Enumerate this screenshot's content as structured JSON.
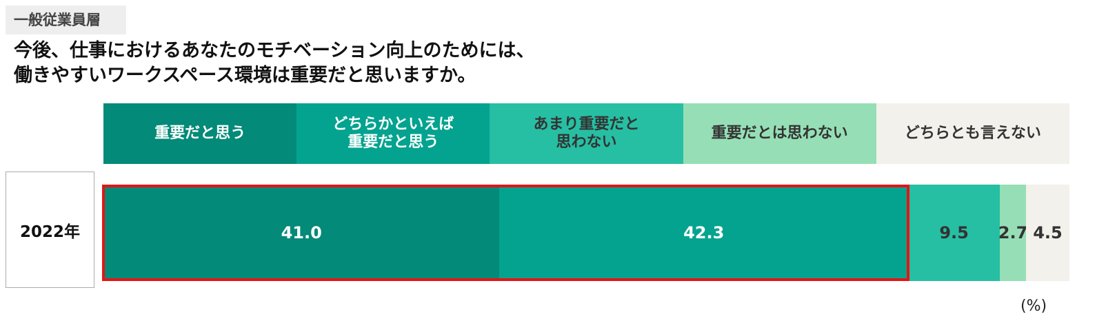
{
  "chart_data": {
    "type": "stacked-bar",
    "tag": "一般従業員層",
    "title": "今後、仕事におけるあなたのモチベーション向上のためには、\n働きやすいワークスペース環境は重要だと思いますか。",
    "categories": [
      "2022年"
    ],
    "series": [
      {
        "name": "重要だと思う",
        "color": "#038a78",
        "label_color": "#ffffff",
        "values": [
          41.0
        ],
        "value_labels": [
          "41.0"
        ]
      },
      {
        "name": "どちらかといえば\n重要だと思う",
        "color": "#04a38f",
        "label_color": "#ffffff",
        "values": [
          42.3
        ]
      },
      {
        "name": "あまり重要だと\n思わない",
        "color": "#26bfa3",
        "label_color": "#333333",
        "values": [
          9.5
        ]
      },
      {
        "name": "重要だとは思わない",
        "color": "#96dfb6",
        "label_color": "#333333",
        "values": [
          2.7
        ]
      },
      {
        "name": "どちらとも言えない",
        "color": "#f3f1eb",
        "label_color": "#333333",
        "values": [
          4.5
        ]
      }
    ],
    "highlight_series": [
      0,
      1
    ],
    "highlight_color": "#e41515",
    "unit": "(%)"
  }
}
